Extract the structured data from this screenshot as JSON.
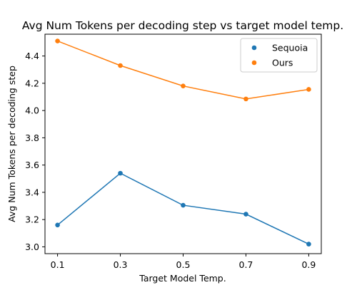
{
  "chart_data": {
    "type": "line",
    "title": "Avg Num Tokens per decoding step vs target model temp.",
    "xlabel": "Target Model Temp.",
    "ylabel": "Avg Num Tokens per decoding step",
    "x": [
      0.1,
      0.3,
      0.5,
      0.7,
      0.9
    ],
    "x_tick_labels": [
      "0.1",
      "0.3",
      "0.5",
      "0.7",
      "0.9"
    ],
    "y_ticks": [
      3.0,
      3.2,
      3.4,
      3.6,
      3.8,
      4.0,
      4.2,
      4.4
    ],
    "y_tick_labels": [
      "3.0",
      "3.2",
      "3.4",
      "3.6",
      "3.8",
      "4.0",
      "4.2",
      "4.4"
    ],
    "xlim": [
      0.06,
      0.94
    ],
    "ylim": [
      2.95,
      4.56
    ],
    "grid": false,
    "legend_position": "top-right",
    "series": [
      {
        "name": "Sequoia",
        "color": "#1f77b4",
        "values": [
          3.16,
          3.54,
          3.305,
          3.24,
          3.02
        ]
      },
      {
        "name": "Ours",
        "color": "#ff7f0e",
        "values": [
          4.51,
          4.33,
          4.18,
          4.085,
          4.155
        ]
      }
    ]
  }
}
